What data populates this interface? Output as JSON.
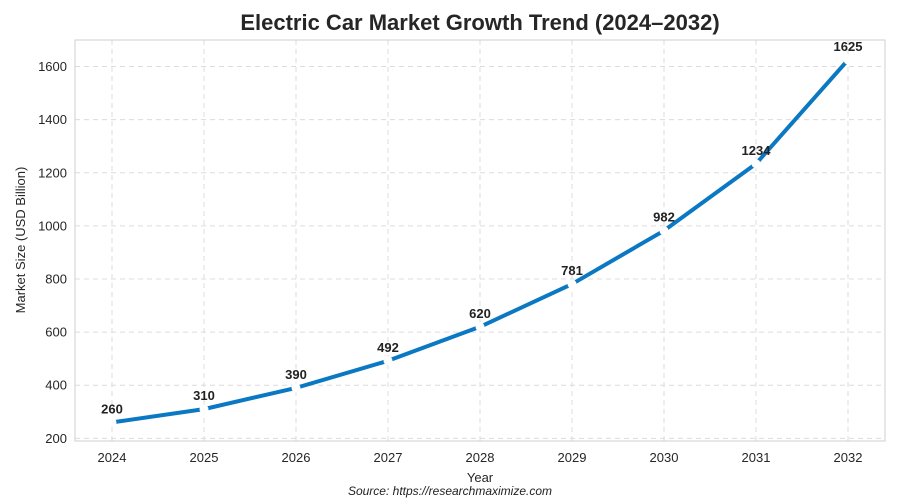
{
  "chart_data": {
    "type": "line",
    "title": "Electric Car Market Growth Trend (2024–2032)",
    "xlabel": "Year",
    "ylabel": "Market Size (USD Billion)",
    "source": "Source: https://researchmaximize.com",
    "x": [
      "2024",
      "2025",
      "2026",
      "2027",
      "2028",
      "2029",
      "2030",
      "2031",
      "2032"
    ],
    "yticks": [
      200,
      400,
      600,
      800,
      1000,
      1200,
      1400,
      1600
    ],
    "ylim": [
      190,
      1700
    ],
    "grid": true,
    "series": [
      {
        "values": [
          260,
          310,
          390,
          492,
          620,
          781,
          982,
          1234,
          1625
        ],
        "color": "#0a78c2"
      }
    ],
    "data_labels": [
      "260",
      "310",
      "390",
      "492",
      "620",
      "781",
      "982",
      "1234",
      "1625"
    ]
  }
}
